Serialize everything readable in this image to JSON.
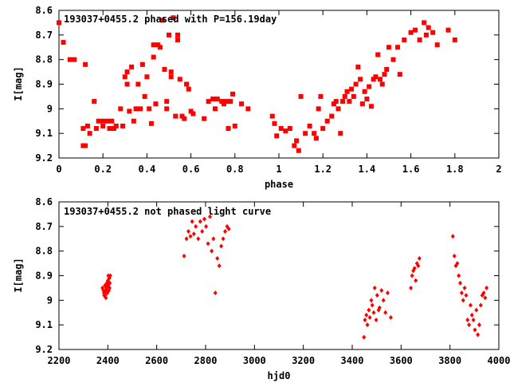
{
  "chart_data": [
    {
      "type": "scatter",
      "title": "193037+0455.2 phased with P=156.19day",
      "xlabel": "phase",
      "ylabel": "I[mag]",
      "xlim": [
        0,
        2
      ],
      "ylim": [
        8.6,
        9.2
      ],
      "y_inverted": true,
      "x_ticks": [
        "0",
        "0.2",
        "0.4",
        "0.6",
        "0.8",
        "1",
        "1.2",
        "1.4",
        "1.6",
        "1.8",
        "2"
      ],
      "y_ticks": [
        "8.6",
        "8.7",
        "8.8",
        "8.9",
        "9",
        "9.1",
        "9.2"
      ],
      "grid": false,
      "marker": "filled-square",
      "color": "#ff0000",
      "series": [
        {
          "x": [
            0.0,
            0.02,
            0.05,
            0.07,
            0.11,
            0.11,
            0.12,
            0.12,
            0.13,
            0.14,
            0.16,
            0.17,
            0.18,
            0.2,
            0.2,
            0.22,
            0.23,
            0.24,
            0.25,
            0.26,
            0.28,
            0.29,
            0.3,
            0.31,
            0.31,
            0.32,
            0.33,
            0.34,
            0.35,
            0.36,
            0.37,
            0.38,
            0.39,
            0.4,
            0.41,
            0.42,
            0.43,
            0.43,
            0.44,
            0.45,
            0.46,
            0.47,
            0.48,
            0.49,
            0.49,
            0.5,
            0.51,
            0.51,
            0.52,
            0.53,
            0.54,
            0.54,
            0.55,
            0.56,
            0.57,
            0.58,
            0.59,
            0.6,
            0.61,
            0.66,
            0.68,
            0.7,
            0.71,
            0.72,
            0.74,
            0.75,
            0.76,
            0.77,
            0.78,
            0.79,
            0.8,
            0.83,
            0.86,
            0.97,
            0.98,
            0.99,
            1.01,
            1.03,
            1.05,
            1.07,
            1.08,
            1.09,
            1.1,
            1.12,
            1.14,
            1.16,
            1.17,
            1.18,
            1.19,
            1.2,
            1.22,
            1.24,
            1.25,
            1.26,
            1.27,
            1.28,
            1.29,
            1.3,
            1.31,
            1.32,
            1.33,
            1.34,
            1.35,
            1.36,
            1.37,
            1.38,
            1.39,
            1.4,
            1.41,
            1.42,
            1.43,
            1.44,
            1.45,
            1.46,
            1.47,
            1.48,
            1.49,
            1.5,
            1.52,
            1.54,
            1.55,
            1.57,
            1.6,
            1.62,
            1.64,
            1.66,
            1.67,
            1.68,
            1.7,
            1.72,
            1.77,
            1.8
          ],
          "y": [
            8.65,
            8.73,
            8.8,
            8.8,
            9.08,
            9.15,
            8.82,
            9.15,
            9.07,
            9.1,
            8.97,
            9.08,
            9.05,
            9.07,
            9.05,
            9.05,
            9.08,
            9.05,
            9.08,
            9.07,
            9.0,
            9.07,
            8.87,
            8.9,
            8.85,
            9.01,
            8.83,
            9.05,
            9.0,
            8.9,
            9.0,
            8.82,
            8.95,
            8.87,
            9.0,
            9.06,
            8.74,
            8.79,
            8.98,
            8.74,
            8.75,
            8.64,
            8.84,
            8.97,
            9.0,
            8.7,
            8.85,
            8.87,
            8.63,
            9.03,
            8.72,
            8.7,
            8.88,
            9.03,
            9.04,
            8.9,
            8.92,
            9.01,
            9.02,
            9.04,
            8.97,
            8.96,
            9.0,
            8.96,
            8.97,
            8.98,
            8.97,
            9.08,
            8.97,
            8.94,
            9.07,
            8.98,
            9.0,
            9.03,
            9.06,
            9.11,
            9.08,
            9.09,
            9.08,
            9.15,
            9.13,
            9.17,
            8.95,
            9.1,
            9.07,
            9.1,
            9.12,
            9.0,
            8.95,
            9.08,
            9.05,
            9.03,
            8.98,
            8.97,
            9.0,
            9.1,
            8.97,
            8.95,
            8.93,
            8.97,
            8.92,
            8.95,
            8.9,
            8.83,
            8.88,
            8.98,
            8.93,
            8.96,
            8.91,
            8.99,
            8.88,
            8.87,
            8.78,
            8.88,
            8.9,
            8.86,
            8.84,
            8.75,
            8.8,
            8.75,
            8.86,
            8.72,
            8.69,
            8.68,
            8.72,
            8.65,
            8.7,
            8.67,
            8.69,
            8.74,
            8.68,
            8.72
          ]
        }
      ]
    },
    {
      "type": "scatter",
      "title": "193037+0455.2 not phased light curve",
      "xlabel": "hjd0",
      "ylabel": "I[mag]",
      "xlim": [
        2200,
        4000
      ],
      "ylim": [
        8.6,
        9.2
      ],
      "y_inverted": true,
      "x_ticks": [
        "2200",
        "2400",
        "2600",
        "2800",
        "3000",
        "3200",
        "3400",
        "3600",
        "3800",
        "4000"
      ],
      "y_ticks": [
        "8.6",
        "8.7",
        "8.8",
        "8.9",
        "9",
        "9.1",
        "9.2"
      ],
      "grid": false,
      "marker": "filled-diamond",
      "color": "#ff0000",
      "series": [
        {
          "x": [
            2378,
            2382,
            2385,
            2388,
            2390,
            2392,
            2394,
            2396,
            2398,
            2400,
            2402,
            2404,
            2406,
            2408,
            2410,
            2384,
            2389,
            2395,
            2401,
            2407,
            2712,
            2722,
            2730,
            2738,
            2745,
            2752,
            2760,
            2770,
            2778,
            2786,
            2795,
            2802,
            2810,
            2818,
            2825,
            2832,
            2840,
            2848,
            2856,
            2864,
            2872,
            2880,
            2888,
            2895,
            3448,
            3452,
            3458,
            3462,
            3468,
            3472,
            3478,
            3482,
            3488,
            3492,
            3498,
            3502,
            3508,
            3512,
            3520,
            3528,
            3536,
            3545,
            3558,
            3640,
            3645,
            3650,
            3655,
            3660,
            3665,
            3670,
            3675,
            3812,
            3818,
            3824,
            3830,
            3836,
            3842,
            3848,
            3854,
            3860,
            3866,
            3872,
            3878,
            3884,
            3890,
            3896,
            3902,
            3908,
            3914,
            3920,
            3926,
            3932,
            3938,
            3944,
            3950
          ],
          "y": [
            8.95,
            8.96,
            8.98,
            8.94,
            8.96,
            8.99,
            8.95,
            8.93,
            8.97,
            8.92,
            8.9,
            8.96,
            8.91,
            8.93,
            8.9,
            8.97,
            8.98,
            8.96,
            8.94,
            8.95,
            8.82,
            8.75,
            8.72,
            8.74,
            8.68,
            8.73,
            8.7,
            8.75,
            8.68,
            8.72,
            8.67,
            8.7,
            8.77,
            8.66,
            8.8,
            8.75,
            8.97,
            8.83,
            8.86,
            8.78,
            8.75,
            8.72,
            8.7,
            8.71,
            9.15,
            9.08,
            9.06,
            9.1,
            9.04,
            9.07,
            9.0,
            9.02,
            9.05,
            8.95,
            9.08,
            8.98,
            9.04,
            9.03,
            8.96,
            9.0,
            9.05,
            8.97,
            9.07,
            8.95,
            8.9,
            8.88,
            8.87,
            8.92,
            8.85,
            8.86,
            8.83,
            8.74,
            8.82,
            8.86,
            8.85,
            8.9,
            8.93,
            8.97,
            9.0,
            8.95,
            8.98,
            9.08,
            9.1,
            9.02,
            9.06,
            9.08,
            9.12,
            9.04,
            9.14,
            9.1,
            9.02,
            8.98,
            8.97,
            8.99,
            8.95
          ]
        }
      ]
    }
  ]
}
